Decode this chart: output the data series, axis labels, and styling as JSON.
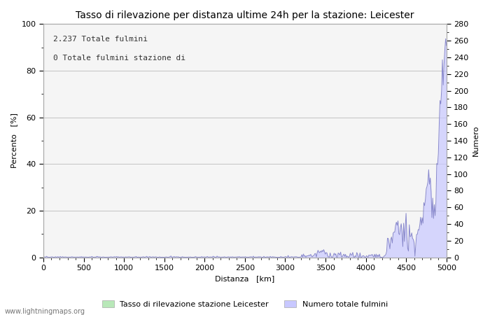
{
  "title": "Tasso di rilevazione per distanza ultime 24h per la stazione: Leicester",
  "xlabel": "Distanza   [km]",
  "ylabel_left": "Percento   [%]",
  "ylabel_right": "Numero",
  "annotation_line1": "2.237 Totale fulmini",
  "annotation_line2": "0 Totale fulmini stazione di",
  "xlim": [
    0,
    5000
  ],
  "ylim_left": [
    0,
    100
  ],
  "ylim_right": [
    0,
    280
  ],
  "xticks": [
    0,
    500,
    1000,
    1500,
    2000,
    2500,
    3000,
    3500,
    4000,
    4500,
    5000
  ],
  "yticks_left": [
    0,
    20,
    40,
    60,
    80,
    100
  ],
  "yticks_right": [
    0,
    20,
    40,
    60,
    80,
    100,
    120,
    140,
    160,
    180,
    200,
    220,
    240,
    260,
    280
  ],
  "legend_label_left": "Tasso di rilevazione stazione Leicester",
  "legend_label_right": "Numero totale fulmini",
  "fill_color_right": "#c8c8ff",
  "line_color_right": "#8888cc",
  "fill_color_left": "#b8e8b8",
  "line_color_left": "#88cc88",
  "background_color": "#ffffff",
  "plot_bg_color": "#f5f5f5",
  "grid_color": "#bbbbbb",
  "watermark": "www.lightningmaps.org",
  "title_fontsize": 10,
  "axis_fontsize": 8,
  "tick_fontsize": 8,
  "annotation_fontsize": 8
}
